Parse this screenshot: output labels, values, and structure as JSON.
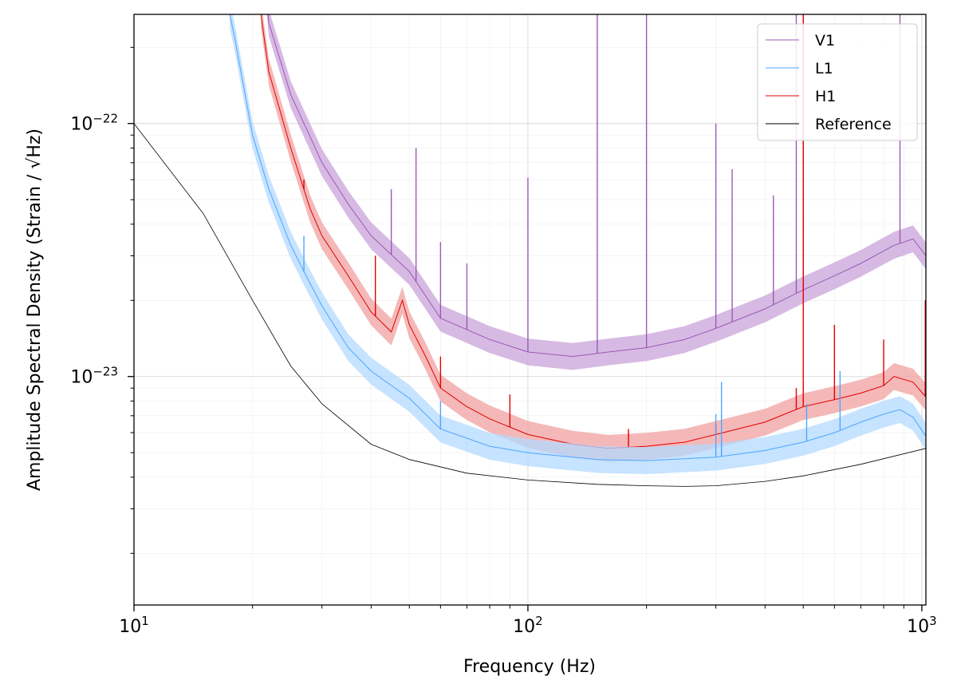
{
  "chart_data": {
    "type": "line",
    "title": "",
    "xlabel": "Frequency (Hz)",
    "ylabel": "Amplitude Spectral Density (Strain / √Hz)",
    "xscale": "log",
    "yscale": "log",
    "xlim": [
      10,
      1024
    ],
    "ylim": [
      1.25e-24,
      2.7e-22
    ],
    "grid": "on (major and minor)",
    "legend_position": "top-right",
    "x_ticks": [
      {
        "value": 10,
        "base": "10",
        "exp": "1"
      },
      {
        "value": 100,
        "base": "10",
        "exp": "2"
      },
      {
        "value": 1000,
        "base": "10",
        "exp": "3"
      }
    ],
    "y_ticks": [
      {
        "value": 1e-23,
        "base": "10",
        "exp": "−23"
      },
      {
        "value": 1e-22,
        "base": "10",
        "exp": "−22"
      }
    ],
    "series": [
      {
        "name": "V1",
        "color": "#9b59b6",
        "band_color": "#c9a3d9",
        "x": [
          20,
          22,
          25,
          30,
          35,
          40,
          50,
          60,
          80,
          100,
          130,
          160,
          200,
          250,
          300,
          400,
          500,
          600,
          700,
          850,
          950,
          1024
        ],
        "y": [
          1.2e-21,
          2.5e-22,
          1.3e-22,
          7e-23,
          4.8e-23,
          3.6e-23,
          2.6e-23,
          1.7e-23,
          1.4e-23,
          1.25e-23,
          1.2e-23,
          1.25e-23,
          1.3e-23,
          1.4e-23,
          1.55e-23,
          1.85e-23,
          2.2e-23,
          2.5e-23,
          2.8e-23,
          3.3e-23,
          3.5e-23,
          3e-23
        ],
        "spikes": [
          [
            45,
            5.5e-23
          ],
          [
            52,
            8e-23
          ],
          [
            60,
            3.4e-23
          ],
          [
            70,
            2.8e-23
          ],
          [
            100,
            6.1e-23
          ],
          [
            150,
            2.7e-22
          ],
          [
            200,
            2.7e-22
          ],
          [
            300,
            1e-22
          ],
          [
            330,
            6.6e-23
          ],
          [
            420,
            5.2e-23
          ],
          [
            480,
            2.7e-22
          ],
          [
            500,
            2.7e-22
          ],
          [
            880,
            2.7e-22
          ]
        ]
      },
      {
        "name": "L1",
        "color": "#4da6ff",
        "band_color": "#b3d9ff",
        "x": [
          17.5,
          18,
          20,
          22,
          25,
          27,
          30,
          35,
          40,
          50,
          60,
          80,
          100,
          150,
          200,
          300,
          400,
          500,
          600,
          700,
          800,
          880,
          950,
          1024
        ],
        "y": [
          2.7e-22,
          2.2e-22,
          9e-23,
          5.5e-23,
          3.3e-23,
          2.6e-23,
          1.9e-23,
          1.3e-23,
          1.05e-23,
          8.2e-24,
          6.2e-24,
          5.3e-24,
          5e-24,
          4.7e-24,
          4.65e-24,
          4.8e-24,
          5.1e-24,
          5.5e-24,
          6e-24,
          6.6e-24,
          7.1e-24,
          7.4e-24,
          6.9e-24,
          5.8e-24
        ],
        "spikes": [
          [
            27,
            3.6e-23
          ],
          [
            60,
            8e-24
          ],
          [
            300,
            7.1e-24
          ],
          [
            310,
            9.5e-24
          ],
          [
            510,
            7.8e-24
          ],
          [
            620,
            1.05e-23
          ]
        ]
      },
      {
        "name": "H1",
        "color": "#e00000",
        "band_color": "#f2a0a0",
        "x": [
          21,
          22,
          25,
          28,
          30,
          35,
          40,
          45,
          48,
          50,
          55,
          60,
          70,
          80,
          100,
          130,
          160,
          200,
          250,
          300,
          400,
          500,
          600,
          700,
          800,
          850,
          950,
          1024
        ],
        "y": [
          2.7e-22,
          1.6e-22,
          8e-23,
          4.6e-23,
          3.6e-23,
          2.5e-23,
          1.8e-23,
          1.5e-23,
          2e-23,
          1.6e-23,
          1.2e-23,
          9e-24,
          7.6e-24,
          6.8e-24,
          5.9e-24,
          5.4e-24,
          5.2e-24,
          5.3e-24,
          5.5e-24,
          5.9e-24,
          6.6e-24,
          7.6e-24,
          8.1e-24,
          8.6e-24,
          9.2e-24,
          1e-23,
          9.5e-24,
          8.3e-24
        ],
        "spikes": [
          [
            27,
            6e-23
          ],
          [
            41,
            3e-23
          ],
          [
            60,
            1.2e-23
          ],
          [
            90,
            8.5e-24
          ],
          [
            180,
            6.2e-24
          ],
          [
            300,
            6.5e-24
          ],
          [
            480,
            9e-24
          ],
          [
            500,
            2.7e-22
          ],
          [
            600,
            1.6e-23
          ],
          [
            800,
            1.4e-23
          ],
          [
            1020,
            2e-23
          ]
        ]
      },
      {
        "name": "Reference",
        "color": "#000000",
        "x": [
          10,
          15,
          20,
          25,
          30,
          40,
          50,
          70,
          100,
          150,
          200,
          250,
          300,
          400,
          500,
          700,
          1024
        ],
        "y": [
          1e-22,
          4.4e-23,
          2e-23,
          1.1e-23,
          7.8e-24,
          5.4e-24,
          4.7e-24,
          4.15e-24,
          3.9e-24,
          3.75e-24,
          3.7e-24,
          3.68e-24,
          3.7e-24,
          3.85e-24,
          4.05e-24,
          4.5e-24,
          5.2e-24
        ]
      }
    ]
  }
}
